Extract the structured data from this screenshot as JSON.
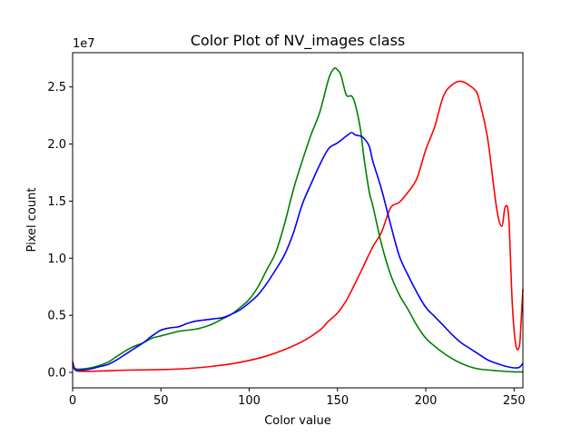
{
  "chart_data": {
    "type": "line",
    "title": "Color Plot of NV_images class",
    "xlabel": "Color value",
    "ylabel": "Pixel count",
    "y_offset_text": "1e7",
    "xlim": [
      0,
      255
    ],
    "ylim": [
      -1350000,
      28000000
    ],
    "xticks": [
      0,
      50,
      100,
      150,
      200,
      250
    ],
    "yticks": [
      0,
      5000000,
      10000000,
      15000000,
      20000000,
      25000000
    ],
    "ytick_labels": [
      "0.0",
      "0.5",
      "1.0",
      "1.5",
      "2.0",
      "2.5"
    ],
    "grid": false,
    "series": [
      {
        "color": "#ff0000",
        "x": [
          0,
          1,
          2,
          5,
          10,
          20,
          30,
          40,
          50,
          60,
          70,
          80,
          90,
          100,
          110,
          120,
          130,
          140,
          145,
          150,
          155,
          160,
          165,
          170,
          175,
          180,
          185,
          190,
          195,
          200,
          205,
          210,
          215,
          220,
          225,
          228,
          230,
          235,
          240,
          243,
          245,
          247,
          249,
          251,
          253,
          254,
          255
        ],
        "y": [
          1000000,
          400000,
          150000,
          100000,
          100000,
          150000,
          200000,
          220000,
          250000,
          300000,
          400000,
          550000,
          750000,
          1050000,
          1450000,
          2000000,
          2700000,
          3700000,
          4500000,
          5200000,
          6300000,
          7800000,
          9400000,
          11000000,
          12300000,
          14400000,
          14900000,
          15800000,
          17000000,
          19500000,
          21500000,
          24200000,
          25200000,
          25500000,
          25100000,
          24700000,
          24000000,
          20500000,
          14500000,
          12800000,
          14500000,
          13500000,
          6000000,
          2400000,
          2300000,
          4500000,
          7300000
        ]
      },
      {
        "color": "#008000",
        "x": [
          0,
          2,
          5,
          10,
          15,
          20,
          25,
          30,
          35,
          40,
          45,
          50,
          55,
          60,
          65,
          70,
          75,
          80,
          85,
          90,
          95,
          100,
          105,
          110,
          115,
          120,
          125,
          130,
          135,
          140,
          145,
          148,
          150,
          152,
          155,
          158,
          160,
          163,
          165,
          168,
          170,
          175,
          180,
          185,
          190,
          195,
          200,
          205,
          210,
          215,
          220,
          225,
          230,
          240,
          250,
          255
        ],
        "y": [
          500000,
          300000,
          300000,
          400000,
          600000,
          900000,
          1400000,
          1900000,
          2300000,
          2600000,
          3000000,
          3200000,
          3400000,
          3600000,
          3700000,
          3800000,
          4000000,
          4300000,
          4700000,
          5100000,
          5700000,
          6400000,
          7500000,
          9000000,
          10500000,
          13000000,
          16000000,
          18500000,
          20800000,
          22800000,
          25700000,
          26600000,
          26500000,
          26000000,
          24300000,
          24200000,
          23500000,
          21300000,
          18800000,
          15800000,
          14600000,
          11200000,
          8600000,
          6800000,
          5500000,
          4100000,
          3000000,
          2300000,
          1700000,
          1200000,
          800000,
          500000,
          300000,
          150000,
          50000,
          50000
        ]
      },
      {
        "color": "#0000ff",
        "x": [
          0,
          1,
          3,
          5,
          10,
          15,
          20,
          25,
          30,
          35,
          40,
          45,
          50,
          55,
          60,
          65,
          70,
          75,
          80,
          85,
          90,
          95,
          100,
          105,
          110,
          115,
          120,
          125,
          130,
          135,
          140,
          145,
          150,
          155,
          158,
          160,
          163,
          165,
          168,
          170,
          175,
          180,
          185,
          190,
          195,
          200,
          205,
          210,
          215,
          220,
          225,
          230,
          235,
          240,
          245,
          250,
          253,
          255
        ],
        "y": [
          800000,
          300000,
          200000,
          200000,
          300000,
          500000,
          700000,
          1100000,
          1600000,
          2100000,
          2600000,
          3200000,
          3700000,
          3900000,
          4000000,
          4300000,
          4500000,
          4600000,
          4700000,
          4800000,
          5100000,
          5500000,
          6100000,
          6800000,
          7800000,
          9000000,
          10300000,
          12200000,
          14700000,
          16500000,
          18200000,
          19600000,
          20100000,
          20700000,
          21000000,
          20800000,
          20700000,
          20500000,
          19800000,
          18500000,
          16000000,
          13000000,
          10200000,
          8500000,
          7000000,
          5700000,
          4900000,
          4100000,
          3300000,
          2600000,
          2100000,
          1600000,
          1100000,
          800000,
          550000,
          400000,
          450000,
          800000
        ]
      }
    ]
  }
}
